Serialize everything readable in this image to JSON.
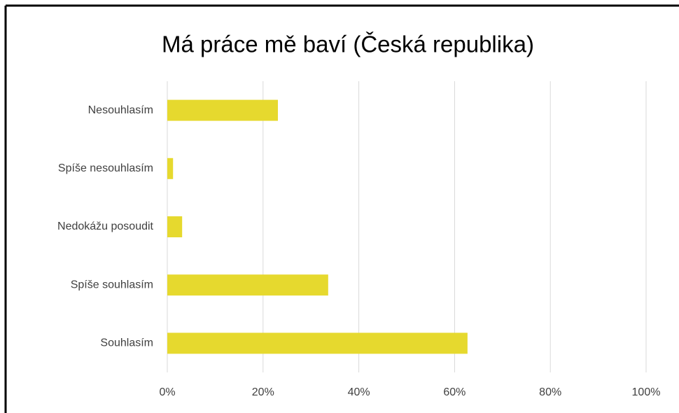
{
  "chart_data": {
    "type": "bar",
    "orientation": "horizontal",
    "title": "Má práce mě baví (Česká republika)",
    "categories": [
      "Nesouhlasím",
      "Spíše nesouhlasím",
      "Nedokážu posoudit",
      "Spíše souhlasím",
      "Souhlasím"
    ],
    "values": [
      23.1,
      1.2,
      3.1,
      33.6,
      62.7
    ],
    "color": "#e6d92e",
    "xlim": [
      0,
      100
    ],
    "xticks": [
      {
        "value": 0,
        "label": "0%"
      },
      {
        "value": 20,
        "label": "20%"
      },
      {
        "value": 40,
        "label": "40%"
      },
      {
        "value": 60,
        "label": "60%"
      },
      {
        "value": 80,
        "label": "80%"
      },
      {
        "value": 100,
        "label": "100%"
      }
    ],
    "grid": true
  }
}
